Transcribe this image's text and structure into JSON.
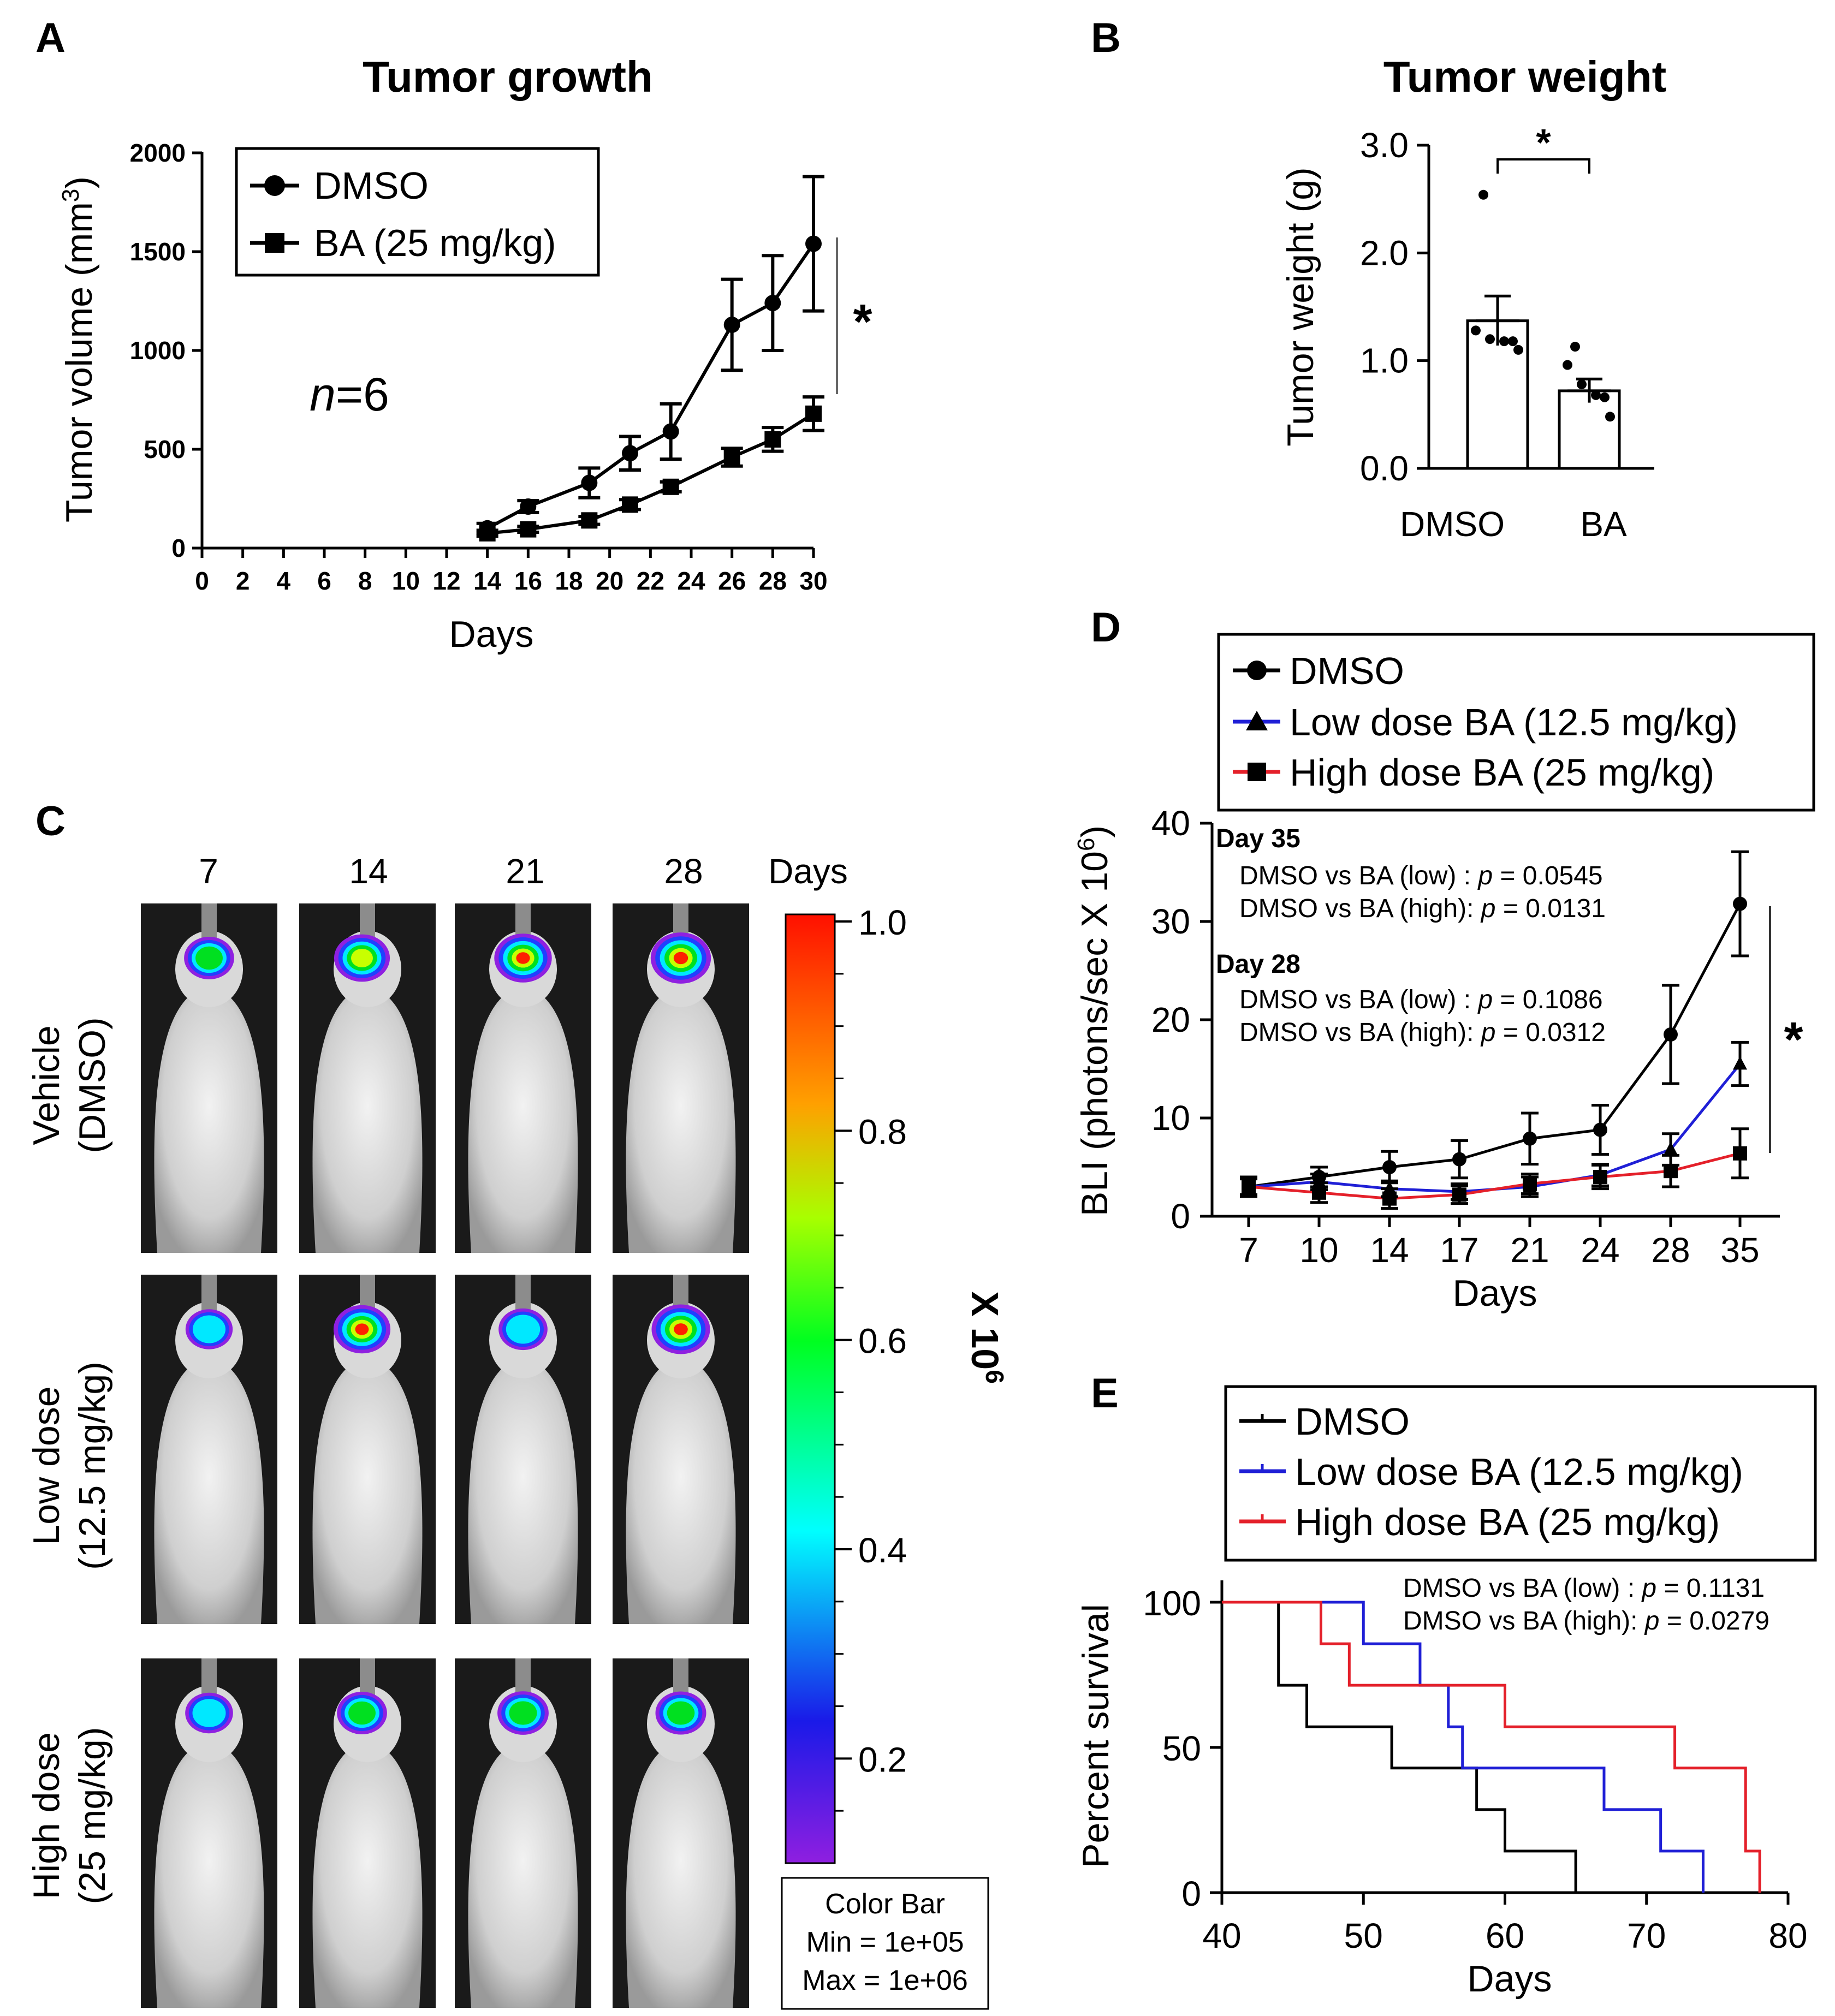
{
  "figure": {
    "panelA": {
      "label": "A",
      "n_text_italic": "n",
      "n_text_rest": "=6",
      "sig": "*"
    },
    "panelB": {
      "label": "B",
      "sig": "*"
    },
    "panelC": {
      "label": "C",
      "columns": [
        "7",
        "14",
        "21",
        "28"
      ],
      "days_label": "Days",
      "rows": [
        [
          "Vehicle",
          "(DMSO)"
        ],
        [
          "Low dose",
          "(12.5 mg/kg)"
        ],
        [
          "High dose",
          "(25 mg/kg)"
        ]
      ],
      "colorbar": {
        "ticks": [
          "1.0",
          "0.8",
          "0.6",
          "0.4",
          "0.2"
        ],
        "scale_label": "X 10",
        "scale_exp": "6",
        "box_title": "Color Bar",
        "box_min": "Min = 1e+05",
        "box_max": "Max = 1e+06"
      },
      "intensity": [
        [
          0.55,
          0.8,
          0.88,
          1.0
        ],
        [
          0.42,
          0.85,
          0.5,
          0.92
        ],
        [
          0.45,
          0.55,
          0.6,
          0.58
        ]
      ]
    },
    "panelD": {
      "label": "D",
      "ann_day35": "Day 35",
      "ann_d35_low_pre": "DMSO vs BA (low) : ",
      "ann_d35_low_p": "p",
      "ann_d35_low_val": " = 0.0545",
      "ann_d35_high_pre": "DMSO vs BA (high): ",
      "ann_d35_high_p": "p",
      "ann_d35_high_val": " = 0.0131",
      "ann_day28": "Day 28",
      "ann_d28_low_pre": "DMSO vs BA (low) : ",
      "ann_d28_low_p": "p",
      "ann_d28_low_val": " = 0.1086",
      "ann_d28_high_pre": "DMSO vs BA (high): ",
      "ann_d28_high_p": "p",
      "ann_d28_high_val": " = 0.0312",
      "sig": "*"
    },
    "panelE": {
      "label": "E",
      "ann_low_pre": "DMSO vs BA (low) : ",
      "ann_low_p": "p",
      "ann_low_val": " = 0.1131",
      "ann_high_pre": "DMSO vs BA (high): ",
      "ann_high_p": "p",
      "ann_high_val": " = 0.0279"
    }
  },
  "chart_data": [
    {
      "type": "line",
      "title": "Tumor growth",
      "xlabel": "Days",
      "ylabel": "Tumor volume (mm",
      "ylabel_sup": "3",
      "ylabel_end": ")",
      "xlim": [
        0,
        30
      ],
      "ylim": [
        0,
        2000
      ],
      "xticks": [
        "0",
        "2",
        "4",
        "6",
        "8",
        "10",
        "12",
        "14",
        "16",
        "18",
        "20",
        "22",
        "24",
        "26",
        "28",
        "30"
      ],
      "yticks": [
        "0",
        "500",
        "1000",
        "1500",
        "2000"
      ],
      "legend": [
        "DMSO",
        "BA (25 mg/kg)"
      ],
      "series": [
        {
          "name": "DMSO",
          "marker": "circle",
          "color": "#000000",
          "x": [
            14,
            16,
            19,
            21,
            23,
            26,
            28,
            30
          ],
          "y": [
            100,
            210,
            330,
            480,
            590,
            1130,
            1240,
            1540
          ],
          "err": [
            25,
            30,
            75,
            85,
            140,
            230,
            240,
            340
          ]
        },
        {
          "name": "BA (25 mg/kg)",
          "marker": "square",
          "color": "#000000",
          "x": [
            14,
            16,
            19,
            21,
            23,
            26,
            28,
            30
          ],
          "y": [
            75,
            95,
            140,
            220,
            310,
            460,
            550,
            680
          ],
          "err": [
            15,
            15,
            20,
            25,
            25,
            45,
            60,
            85
          ]
        }
      ]
    },
    {
      "type": "bar",
      "title": "Tumor weight",
      "categories": [
        "DMSO",
        "BA"
      ],
      "values": [
        1.37,
        0.72
      ],
      "errors": [
        0.23,
        0.11
      ],
      "points": [
        [
          2.54,
          1.28,
          1.2,
          1.18,
          1.18,
          1.1
        ],
        [
          1.13,
          0.96,
          0.78,
          0.68,
          0.66,
          0.48
        ]
      ],
      "ylabel": "Tumor weight (g)",
      "ylim": [
        0,
        3.0
      ],
      "yticks": [
        "0.0",
        "1.0",
        "2.0",
        "3.0"
      ]
    },
    {
      "type": "line",
      "xlabel": "Days",
      "ylabel": "BLI (photons/sec X 10",
      "ylabel_sup": "6",
      "ylabel_end": ")",
      "ylim": [
        0,
        40
      ],
      "categories": [
        "7",
        "10",
        "14",
        "17",
        "21",
        "24",
        "28",
        "35"
      ],
      "yticks": [
        "0",
        "10",
        "20",
        "30",
        "40"
      ],
      "legend": [
        "DMSO",
        "Low dose BA (12.5 mg/kg)",
        "High dose BA (25 mg/kg)"
      ],
      "series": [
        {
          "name": "DMSO",
          "marker": "circle",
          "color": "#000000",
          "values": [
            3.0,
            4.0,
            5.0,
            5.8,
            7.9,
            8.8,
            18.5,
            31.8
          ],
          "err": [
            1.0,
            1.0,
            1.6,
            1.9,
            2.6,
            2.5,
            5.0,
            5.3
          ]
        },
        {
          "name": "Low dose BA (12.5 mg/kg)",
          "marker": "triangle",
          "color": "#1f1fd6",
          "values": [
            3.0,
            3.5,
            2.8,
            2.5,
            3.0,
            4.2,
            6.8,
            15.5
          ],
          "err": [
            0.8,
            0.8,
            0.8,
            0.8,
            1.0,
            1.1,
            1.6,
            2.2
          ]
        },
        {
          "name": "High dose BA (25 mg/kg)",
          "marker": "square",
          "color": "#e4202a",
          "values": [
            3.0,
            2.4,
            1.8,
            2.2,
            3.3,
            4.0,
            4.6,
            6.4
          ],
          "err": [
            1.0,
            1.0,
            1.0,
            0.9,
            1.0,
            1.2,
            1.6,
            2.5
          ]
        }
      ]
    },
    {
      "type": "line",
      "subtype": "step",
      "xlabel": "Days",
      "ylabel": "Percent survival",
      "xlim": [
        40,
        80
      ],
      "ylim": [
        0,
        100
      ],
      "xticks": [
        "40",
        "50",
        "60",
        "70",
        "80"
      ],
      "yticks": [
        "0",
        "50",
        "100"
      ],
      "legend": [
        "DMSO",
        "Low dose BA (12.5 mg/kg)",
        "High dose BA (25 mg/kg)"
      ],
      "series": [
        {
          "name": "DMSO",
          "color": "#000000",
          "x": [
            40,
            44,
            44,
            46,
            46,
            52,
            52,
            58,
            58,
            60,
            60,
            65,
            65
          ],
          "y": [
            100,
            100,
            71.4,
            71.4,
            57.1,
            57.1,
            42.9,
            42.9,
            28.6,
            28.6,
            14.3,
            14.3,
            0
          ]
        },
        {
          "name": "Low dose BA (12.5 mg/kg)",
          "color": "#1f1fd6",
          "x": [
            40,
            50,
            50,
            54,
            54,
            56,
            56,
            57,
            57,
            67,
            67,
            71,
            71,
            74,
            74
          ],
          "y": [
            100,
            100,
            85.7,
            85.7,
            71.4,
            71.4,
            57.1,
            57.1,
            42.9,
            42.9,
            28.6,
            28.6,
            14.3,
            14.3,
            0
          ]
        },
        {
          "name": "High dose BA (25 mg/kg)",
          "color": "#e4202a",
          "x": [
            40,
            47,
            47,
            49,
            49,
            60,
            60,
            72,
            72,
            77,
            77,
            78,
            78
          ],
          "y": [
            100,
            100,
            85.7,
            85.7,
            71.4,
            71.4,
            57.1,
            57.1,
            42.9,
            42.9,
            14.3,
            14.3,
            0
          ]
        }
      ]
    }
  ]
}
